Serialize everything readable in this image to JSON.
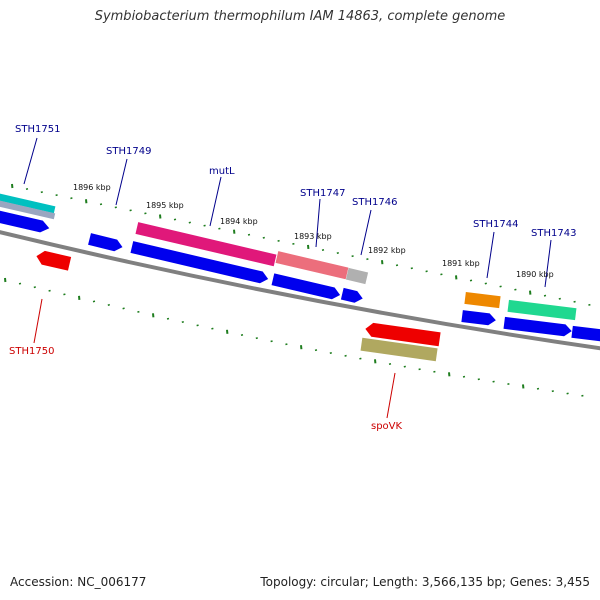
{
  "title": "Symbiobacterium thermophilum IAM 14863, complete genome",
  "footer": {
    "accession": "Accession: NC_006177",
    "summary": "Topology: circular; Length: 3,566,135 bp; Genes: 3,455"
  },
  "colors": {
    "backbone": "#808080",
    "tick": "#1e7d1e",
    "forward_label": "#00008b",
    "reverse_label": "#cc0000",
    "kbp_label": "#111111"
  },
  "kbp_labels": [
    "1896 kbp",
    "1895 kbp",
    "1894 kbp",
    "1893 kbp",
    "1892 kbp",
    "1891 kbp",
    "1890 kbp"
  ],
  "gene_labels": [
    {
      "id": "sth1751",
      "text": "STH1751",
      "strand": "forward"
    },
    {
      "id": "sth1749",
      "text": "STH1749",
      "strand": "forward"
    },
    {
      "id": "mutl",
      "text": "mutL",
      "strand": "forward"
    },
    {
      "id": "sth1747",
      "text": "STH1747",
      "strand": "forward"
    },
    {
      "id": "sth1746",
      "text": "STH1746",
      "strand": "forward"
    },
    {
      "id": "sth1744",
      "text": "STH1744",
      "strand": "forward"
    },
    {
      "id": "sth1743",
      "text": "STH1743",
      "strand": "forward"
    },
    {
      "id": "sth1750",
      "text": "STH1750",
      "strand": "reverse"
    },
    {
      "id": "spovk",
      "text": "spoVK",
      "strand": "reverse"
    }
  ],
  "features": [
    {
      "id": "feat-cyan-left",
      "color": "#00c0c0"
    },
    {
      "id": "feat-gray-left",
      "color": "#9aa6c0"
    },
    {
      "id": "feat-blue-left",
      "color": "#0000ee"
    },
    {
      "id": "feat-red-left",
      "color": "#ee0000"
    },
    {
      "id": "feat-blue-small",
      "color": "#0000ee"
    },
    {
      "id": "feat-magenta",
      "color": "#e0187a"
    },
    {
      "id": "feat-pink",
      "color": "#ec6e7c"
    },
    {
      "id": "feat-lightgray",
      "color": "#b0b0b0"
    },
    {
      "id": "feat-blue-long",
      "color": "#0000ee"
    },
    {
      "id": "feat-blue-mid",
      "color": "#0000ee"
    },
    {
      "id": "feat-blue-tiny",
      "color": "#0000ee"
    },
    {
      "id": "feat-red-spovk",
      "color": "#ee0000"
    },
    {
      "id": "feat-olive",
      "color": "#b0a860"
    },
    {
      "id": "feat-orange",
      "color": "#ee8800"
    },
    {
      "id": "feat-green",
      "color": "#20d890"
    },
    {
      "id": "feat-blue-right1",
      "color": "#0000ee"
    },
    {
      "id": "feat-blue-right2",
      "color": "#0000ee"
    },
    {
      "id": "feat-blue-right3",
      "color": "#0000ee"
    }
  ]
}
